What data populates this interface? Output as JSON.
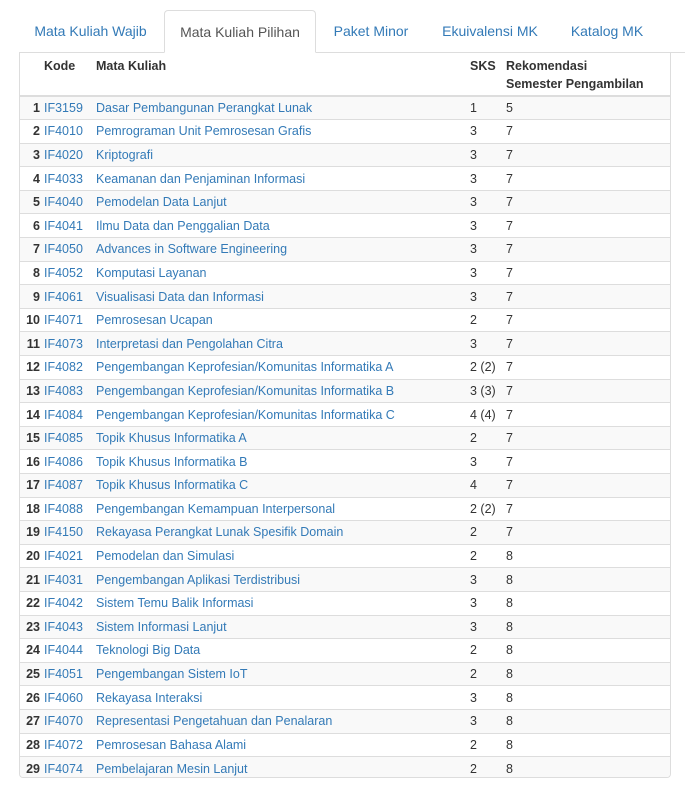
{
  "tabs": [
    {
      "label": "Mata Kuliah Wajib",
      "active": false
    },
    {
      "label": "Mata Kuliah Pilihan",
      "active": true
    },
    {
      "label": "Paket Minor",
      "active": false
    },
    {
      "label": "Ekuivalensi MK",
      "active": false
    },
    {
      "label": "Katalog MK",
      "active": false
    }
  ],
  "table": {
    "headers": {
      "kode": "Kode",
      "mata_kuliah": "Mata Kuliah",
      "sks": "SKS",
      "rekomendasi_line1": "Rekomendasi",
      "rekomendasi_line2": "Semester Pengambilan"
    },
    "rows": [
      {
        "no": "1",
        "kode": "IF3159",
        "nama": "Dasar Pembangunan Perangkat Lunak",
        "sks": "1",
        "semester": "5"
      },
      {
        "no": "2",
        "kode": "IF4010",
        "nama": "Pemrograman Unit Pemrosesan Grafis",
        "sks": "3",
        "semester": "7"
      },
      {
        "no": "3",
        "kode": "IF4020",
        "nama": "Kriptografi",
        "sks": "3",
        "semester": "7"
      },
      {
        "no": "4",
        "kode": "IF4033",
        "nama": "Keamanan dan Penjaminan Informasi",
        "sks": "3",
        "semester": "7"
      },
      {
        "no": "5",
        "kode": "IF4040",
        "nama": "Pemodelan Data Lanjut",
        "sks": "3",
        "semester": "7"
      },
      {
        "no": "6",
        "kode": "IF4041",
        "nama": "Ilmu Data dan Penggalian Data",
        "sks": "3",
        "semester": "7"
      },
      {
        "no": "7",
        "kode": "IF4050",
        "nama": "Advances in Software Engineering",
        "sks": "3",
        "semester": "7"
      },
      {
        "no": "8",
        "kode": "IF4052",
        "nama": "Komputasi Layanan",
        "sks": "3",
        "semester": "7"
      },
      {
        "no": "9",
        "kode": "IF4061",
        "nama": "Visualisasi Data dan Informasi",
        "sks": "3",
        "semester": "7"
      },
      {
        "no": "10",
        "kode": "IF4071",
        "nama": "Pemrosesan Ucapan",
        "sks": "2",
        "semester": "7"
      },
      {
        "no": "11",
        "kode": "IF4073",
        "nama": "Interpretasi dan Pengolahan Citra",
        "sks": "3",
        "semester": "7"
      },
      {
        "no": "12",
        "kode": "IF4082",
        "nama": "Pengembangan Keprofesian/Komunitas Informatika A",
        "sks": "2 (2)",
        "semester": "7"
      },
      {
        "no": "13",
        "kode": "IF4083",
        "nama": "Pengembangan Keprofesian/Komunitas Informatika B",
        "sks": "3 (3)",
        "semester": "7"
      },
      {
        "no": "14",
        "kode": "IF4084",
        "nama": "Pengembangan Keprofesian/Komunitas Informatika C",
        "sks": "4 (4)",
        "semester": "7"
      },
      {
        "no": "15",
        "kode": "IF4085",
        "nama": "Topik Khusus Informatika A",
        "sks": "2",
        "semester": "7"
      },
      {
        "no": "16",
        "kode": "IF4086",
        "nama": "Topik Khusus Informatika B",
        "sks": "3",
        "semester": "7"
      },
      {
        "no": "17",
        "kode": "IF4087",
        "nama": "Topik Khusus Informatika C",
        "sks": "4",
        "semester": "7"
      },
      {
        "no": "18",
        "kode": "IF4088",
        "nama": "Pengembangan Kemampuan Interpersonal",
        "sks": "2 (2)",
        "semester": "7"
      },
      {
        "no": "19",
        "kode": "IF4150",
        "nama": "Rekayasa Perangkat Lunak Spesifik Domain",
        "sks": "2",
        "semester": "7"
      },
      {
        "no": "20",
        "kode": "IF4021",
        "nama": "Pemodelan dan Simulasi",
        "sks": "2",
        "semester": "8"
      },
      {
        "no": "21",
        "kode": "IF4031",
        "nama": "Pengembangan Aplikasi Terdistribusi",
        "sks": "3",
        "semester": "8"
      },
      {
        "no": "22",
        "kode": "IF4042",
        "nama": "Sistem Temu Balik Informasi",
        "sks": "3",
        "semester": "8"
      },
      {
        "no": "23",
        "kode": "IF4043",
        "nama": "Sistem Informasi Lanjut",
        "sks": "3",
        "semester": "8"
      },
      {
        "no": "24",
        "kode": "IF4044",
        "nama": "Teknologi Big Data",
        "sks": "2",
        "semester": "8"
      },
      {
        "no": "25",
        "kode": "IF4051",
        "nama": "Pengembangan Sistem IoT",
        "sks": "2",
        "semester": "8"
      },
      {
        "no": "26",
        "kode": "IF4060",
        "nama": "Rekayasa Interaksi",
        "sks": "3",
        "semester": "8"
      },
      {
        "no": "27",
        "kode": "IF4070",
        "nama": "Representasi Pengetahuan dan Penalaran",
        "sks": "3",
        "semester": "8"
      },
      {
        "no": "28",
        "kode": "IF4072",
        "nama": "Pemrosesan Bahasa Alami",
        "sks": "2",
        "semester": "8"
      },
      {
        "no": "29",
        "kode": "IF4074",
        "nama": "Pembelajaran Mesin Lanjut",
        "sks": "2",
        "semester": "8"
      }
    ]
  },
  "colors": {
    "link": "#337ab7",
    "text": "#333333",
    "border": "#dddddd",
    "stripe": "#f9f9f9"
  }
}
